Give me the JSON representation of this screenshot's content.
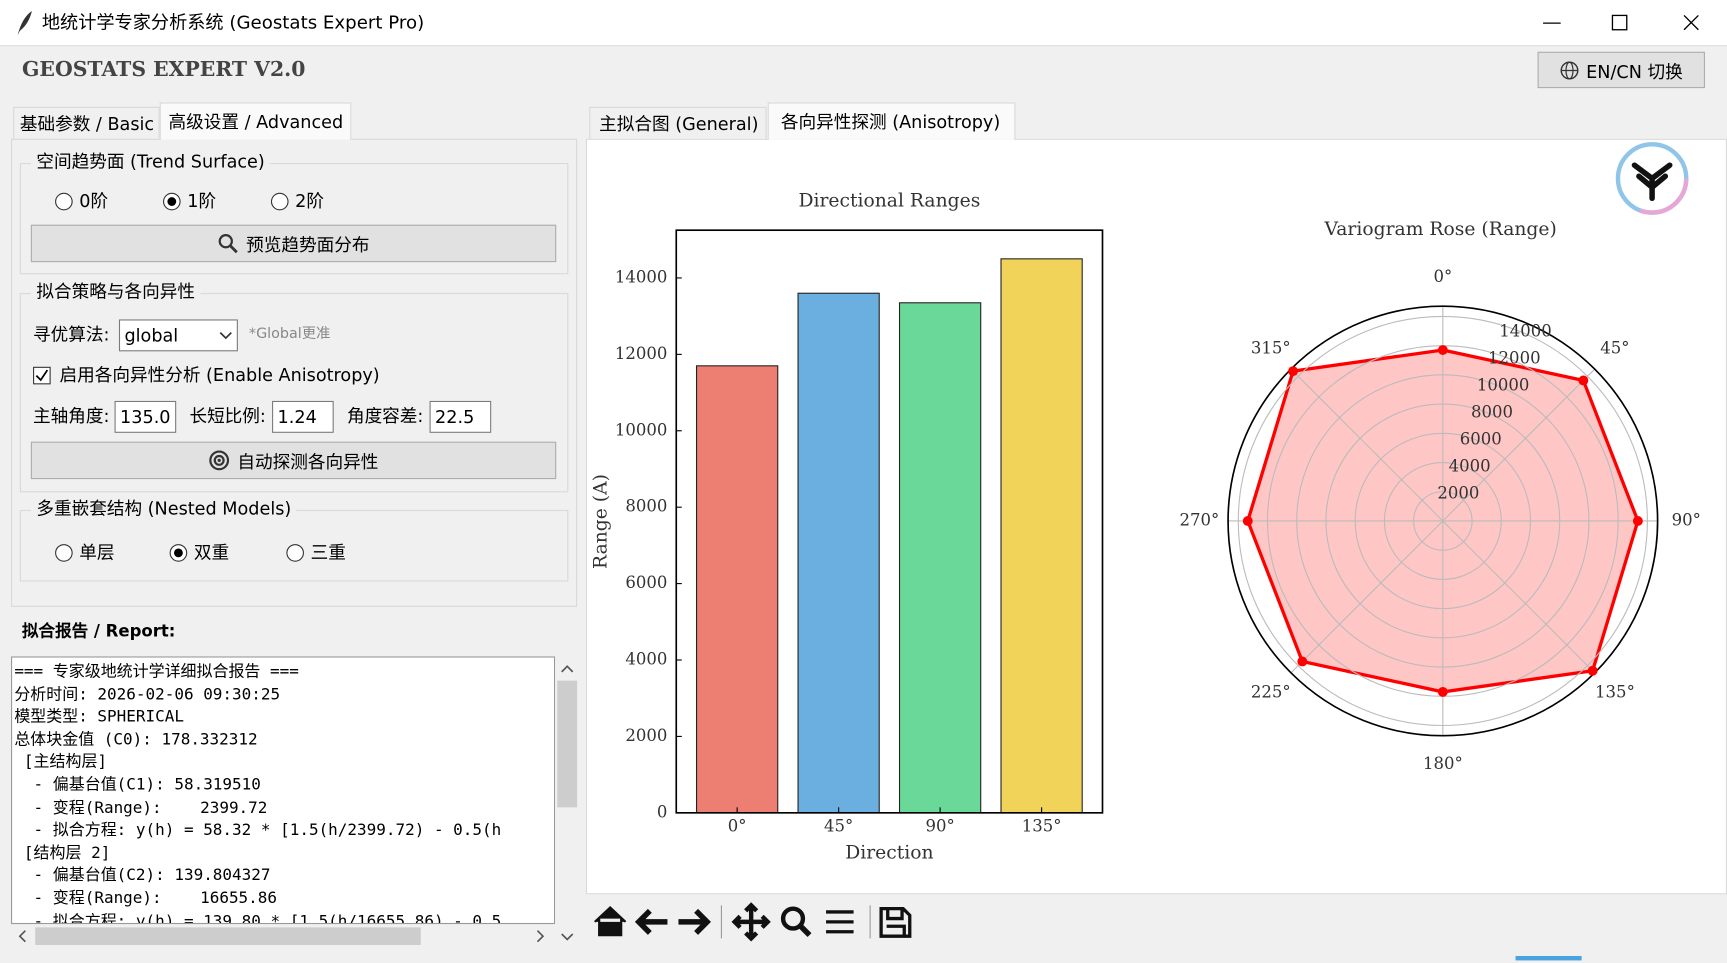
{
  "window": {
    "title": "地统计学专家分析系统 (Geostats Expert Pro)"
  },
  "header": {
    "app_name": "GEOSTATS EXPERT V2.0",
    "lang_button": "EN/CN 切换"
  },
  "left_tabs": [
    "基础参数 / Basic",
    "高级设置 / Advanced"
  ],
  "trend": {
    "title": "空间趋势面 (Trend Surface)",
    "options": [
      "0阶",
      "1阶",
      "2阶"
    ],
    "selected": 1,
    "button": "预览趋势面分布"
  },
  "strategy": {
    "title": "拟合策略与各向异性",
    "algo_label": "寻优算法:",
    "algo_value": "global",
    "algo_hint": "*Global更准",
    "aniso_check": "启用各向异性分析 (Enable Anisotropy)",
    "angle_label": "主轴角度:",
    "angle_value": "135.0",
    "ratio_label": "长短比例:",
    "ratio_value": "1.24",
    "tol_label": "角度容差:",
    "tol_value": "22.5",
    "button": "自动探测各向异性"
  },
  "nested": {
    "title": "多重嵌套结构 (Nested Models)",
    "options": [
      "单层",
      "双重",
      "三重"
    ],
    "selected": 1
  },
  "report": {
    "label": "拟合报告 / Report:",
    "lines": [
      "=== 专家级地统计学详细拟合报告 ===",
      "分析时间: 2026-02-06 09:30:25",
      "模型类型: SPHERICAL",
      "总体块金值 (C0): 178.332312",
      " [主结构层]",
      "  - 偏基台值(C1): 58.319510",
      "  - 变程(Range):    2399.72",
      "  - 拟合方程: y(h) = 58.32 * [1.5(h/2399.72) - 0.5(h",
      " [结构层 2]",
      "  - 偏基台值(C2): 139.804327",
      "  - 变程(Range):    16655.86",
      "  - 拟合方程: y(h) = 139.80 * [1.5(h/16655.86) - 0.5"
    ]
  },
  "right_tabs": [
    "主拟合图 (General)",
    "各向异性探测 (Anisotropy)"
  ],
  "chart_data": [
    {
      "type": "bar",
      "title": "Directional Ranges",
      "x_label": "Direction",
      "y_label": "Range (A)",
      "categories": [
        "0°",
        "45°",
        "90°",
        "135°"
      ],
      "values": [
        11700,
        13600,
        13350,
        14500
      ],
      "colors": [
        "#ec7f72",
        "#6aafe0",
        "#6ad898",
        "#f2d35a"
      ],
      "ylim": [
        0,
        15250
      ],
      "yticks": [
        0,
        2000,
        4000,
        6000,
        8000,
        10000,
        12000,
        14000
      ]
    },
    {
      "type": "polar",
      "title": "Variogram Rose (Range)",
      "categories": [
        "0°",
        "45°",
        "90°",
        "135°",
        "180°",
        "225°",
        "270°",
        "315°"
      ],
      "values": [
        11700,
        13600,
        13350,
        14500,
        11700,
        13600,
        13350,
        14500
      ],
      "color": "#ff0000",
      "fill_color": "#ffc6c6",
      "rlim": [
        0,
        14700
      ],
      "rticks": [
        2000,
        4000,
        6000,
        8000,
        10000,
        12000,
        14000
      ]
    }
  ]
}
